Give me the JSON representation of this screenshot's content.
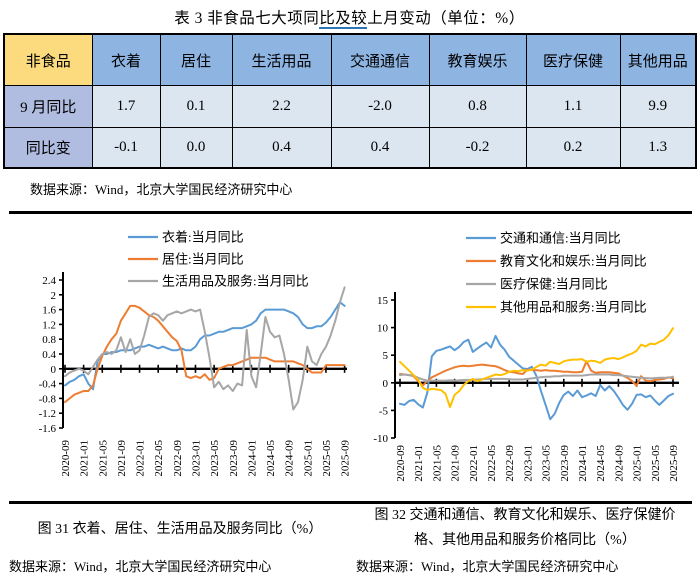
{
  "title": {
    "prefix": "表 3 非食品七大项同",
    "underlined": "比及较",
    "suffix": "上月变动（单位：%）"
  },
  "table": {
    "corner": "非食品",
    "headers": [
      "衣着",
      "居住",
      "生活用品",
      "交通通信",
      "教育娱乐",
      "医疗保健",
      "其他用品"
    ],
    "rows": [
      {
        "label": "9 月同比",
        "values": [
          "1.7",
          "0.1",
          "2.2",
          "-2.0",
          "0.8",
          "1.1",
          "9.9"
        ]
      },
      {
        "label": "同比变",
        "values": [
          "-0.1",
          "0.0",
          "0.4",
          "0.4",
          "-0.2",
          "0.2",
          "1.3"
        ]
      }
    ],
    "source": "数据来源：Wind，北京大学国民经济研究中心",
    "colors": {
      "corner_bg": "#FBDB7D",
      "header_bg": "#8EB4E2",
      "row_label_bg": "#B0BDE1",
      "data_bg": "#DCE6F1",
      "border": "#000000",
      "title_underline": "#2E75B6"
    }
  },
  "chart_data": [
    {
      "type": "line",
      "title": "",
      "xlabel": "",
      "ylabel": "",
      "x_start": "2020-09",
      "x_end": "2025-09",
      "x_frequency": "monthly",
      "x_tick_labels": [
        "2020-09",
        "2021-01",
        "2021-05",
        "2021-09",
        "2022-01",
        "2022-05",
        "2022-09",
        "2023-01",
        "2023-05",
        "2023-09",
        "2024-01",
        "2024-05",
        "2024-09",
        "2025-01",
        "2025-05",
        "2025-09"
      ],
      "ylim": [
        -1.6,
        2.4
      ],
      "ytick_labels": [
        "2.4",
        "2",
        "1.6",
        "1.2",
        "0.8",
        "0.4",
        "0",
        "-0.4",
        "-0.8",
        "-1.2",
        "-1.6"
      ],
      "grid": false,
      "legend_position": "top",
      "series": [
        {
          "name": "衣着:当月同比",
          "color": "#5B9BD5",
          "values": [
            -0.45,
            -0.35,
            -0.3,
            -0.2,
            -0.15,
            -0.4,
            -0.55,
            0.2,
            0.4,
            0.4,
            0.45,
            0.45,
            0.5,
            0.5,
            0.5,
            0.55,
            0.6,
            0.6,
            0.65,
            0.6,
            0.55,
            0.6,
            0.55,
            0.5,
            0.5,
            0.55,
            0.5,
            0.5,
            0.6,
            0.8,
            0.9,
            0.9,
            0.95,
            1.0,
            1.0,
            1.05,
            1.1,
            1.1,
            1.1,
            1.15,
            1.2,
            1.3,
            1.5,
            1.6,
            1.6,
            1.6,
            1.6,
            1.6,
            1.55,
            1.5,
            1.4,
            1.2,
            1.1,
            1.1,
            1.15,
            1.15,
            1.25,
            1.4,
            1.6,
            1.8,
            1.7
          ]
        },
        {
          "name": "居住:当月同比",
          "color": "#ED7D31",
          "values": [
            -0.9,
            -0.8,
            -0.7,
            -0.65,
            -0.6,
            -0.6,
            -0.45,
            0.0,
            0.35,
            0.6,
            0.8,
            0.95,
            1.3,
            1.5,
            1.7,
            1.7,
            1.65,
            1.55,
            1.45,
            1.4,
            1.3,
            1.15,
            1.0,
            0.85,
            0.75,
            0.5,
            -0.2,
            -0.25,
            -0.2,
            -0.25,
            -0.15,
            -0.3,
            -0.25,
            0.0,
            0.05,
            0.1,
            0.1,
            0.15,
            0.2,
            0.25,
            0.3,
            0.3,
            0.3,
            0.3,
            0.25,
            0.2,
            0.2,
            0.2,
            0.2,
            0.2,
            0.15,
            0.1,
            0.0,
            -0.1,
            -0.1,
            -0.1,
            0.1,
            0.1,
            0.1,
            0.1,
            0.1
          ]
        },
        {
          "name": "生活用品及服务:当月同比",
          "color": "#A6A6A6",
          "values": [
            -0.2,
            -0.1,
            -0.05,
            0.0,
            -0.05,
            -0.15,
            0.05,
            0.25,
            0.4,
            0.45,
            0.4,
            0.5,
            0.85,
            0.45,
            0.8,
            0.4,
            0.5,
            0.9,
            1.4,
            1.5,
            1.45,
            1.3,
            1.45,
            1.5,
            1.55,
            1.5,
            1.55,
            1.6,
            1.55,
            1.6,
            1.0,
            0.3,
            -0.5,
            -0.35,
            -0.55,
            -0.45,
            -0.6,
            -0.4,
            -0.45,
            1.05,
            -0.2,
            -0.5,
            0.4,
            1.4,
            1.0,
            0.85,
            0.9,
            0.4,
            -0.3,
            -1.1,
            -0.9,
            -0.3,
            0.6,
            0.2,
            0.1,
            0.4,
            0.6,
            0.9,
            1.3,
            1.8,
            2.2
          ]
        }
      ]
    },
    {
      "type": "line",
      "title": "",
      "xlabel": "",
      "ylabel": "",
      "x_start": "2020-09",
      "x_end": "2025-09",
      "x_frequency": "monthly",
      "x_tick_labels": [
        "2020-09",
        "2021-01",
        "2021-05",
        "2021-09",
        "2022-01",
        "2022-05",
        "2022-09",
        "2023-01",
        "2023-05",
        "2023-09",
        "2024-01",
        "2024-05",
        "2024-09",
        "2025-01",
        "2025-05",
        "2025-09"
      ],
      "ylim": [
        -10,
        15
      ],
      "ytick_labels": [
        "15",
        "10",
        "5",
        "0",
        "-5",
        "-10"
      ],
      "grid": false,
      "legend_position": "top",
      "series": [
        {
          "name": "交通和通信:当月同比",
          "color": "#5B9BD5",
          "values": [
            -3.8,
            -4.0,
            -3.3,
            -3.1,
            -3.9,
            -4.5,
            -1.8,
            4.8,
            5.8,
            6.0,
            6.3,
            6.6,
            5.9,
            6.5,
            7.4,
            7.8,
            5.6,
            6.2,
            6.8,
            7.3,
            6.4,
            8.5,
            6.9,
            6.0,
            4.7,
            4.0,
            3.3,
            2.6,
            2.5,
            2.9,
            1.2,
            -1.5,
            -4.0,
            -6.6,
            -5.6,
            -3.6,
            -2.2,
            -1.6,
            -2.4,
            -1.4,
            -2.6,
            -2.3,
            -1.9,
            -2.4,
            -0.4,
            -1.4,
            -0.6,
            -1.5,
            -2.7,
            -4.0,
            -4.9,
            -3.8,
            -2.2,
            -2.1,
            -2.6,
            -2.3,
            -3.2,
            -4.0,
            -3.2,
            -2.4,
            -2.0
          ]
        },
        {
          "name": "教育文化和娱乐:当月同比",
          "color": "#ED7D31",
          "values": [
            1.6,
            1.5,
            1.4,
            1.2,
            0.3,
            -0.5,
            0.3,
            1.0,
            1.4,
            1.8,
            2.2,
            2.5,
            2.8,
            3.0,
            3.1,
            3.0,
            3.1,
            3.2,
            3.3,
            3.2,
            3.1,
            3.0,
            2.7,
            2.3,
            2.0,
            1.9,
            1.7,
            1.6,
            2.4,
            2.3,
            2.3,
            2.2,
            2.3,
            2.2,
            2.2,
            2.1,
            2.0,
            2.0,
            1.9,
            1.9,
            2.0,
            3.9,
            2.2,
            1.8,
            1.9,
            1.9,
            1.9,
            1.8,
            1.7,
            1.3,
            0.9,
            0.3,
            -0.5,
            1.2,
            0.4,
            0.3,
            0.5,
            0.6,
            0.7,
            1.0,
            0.8
          ]
        },
        {
          "name": "医疗保健:当月同比",
          "color": "#A6A6A6",
          "values": [
            1.4,
            1.5,
            1.4,
            1.3,
            0.9,
            0.6,
            0.4,
            0.4,
            0.4,
            0.4,
            0.4,
            0.45,
            0.4,
            0.45,
            0.5,
            0.5,
            0.55,
            0.6,
            0.65,
            0.7,
            0.7,
            0.7,
            0.7,
            0.7,
            0.65,
            0.6,
            0.6,
            0.6,
            0.7,
            0.8,
            0.9,
            1.0,
            1.1,
            1.1,
            1.2,
            1.2,
            1.3,
            1.3,
            1.3,
            1.3,
            1.3,
            1.4,
            1.5,
            1.5,
            1.5,
            1.5,
            1.5,
            1.4,
            1.4,
            1.3,
            1.2,
            1.1,
            1.0,
            0.9,
            0.85,
            0.8,
            0.85,
            0.9,
            0.9,
            0.9,
            1.1
          ]
        },
        {
          "name": "其他用品和服务:当月同比",
          "color": "#FFC000",
          "values": [
            3.8,
            3.0,
            2.2,
            1.4,
            0.5,
            -0.9,
            -1.3,
            -1.1,
            -1.2,
            -1.3,
            -2.0,
            -4.4,
            -2.2,
            -1.5,
            -0.4,
            0.3,
            0.7,
            0.3,
            0.6,
            0.9,
            1.2,
            1.5,
            1.4,
            1.6,
            2.0,
            2.2,
            2.1,
            2.3,
            2.2,
            2.4,
            2.9,
            3.3,
            3.1,
            3.8,
            3.6,
            3.4,
            3.9,
            4.1,
            4.2,
            4.2,
            4.3,
            3.8,
            4.0,
            3.9,
            3.6,
            4.2,
            4.4,
            4.5,
            4.3,
            4.6,
            5.0,
            5.3,
            5.8,
            6.9,
            6.6,
            7.1,
            7.0,
            7.4,
            7.8,
            8.6,
            9.9
          ]
        }
      ]
    }
  ],
  "figures": [
    {
      "caption_lines": [
        "图 31 衣着、居住、生活用品及服务同比（%）"
      ],
      "source": "数据来源：Wind，北京大学国民经济研究中心"
    },
    {
      "caption_lines": [
        "图 32 交通和通信、教育文化和娱乐、医疗保健价",
        "格、其他用品和服务价格同比（%）"
      ],
      "source": "数据来源：Wind，北京大学国民经济研究中心"
    }
  ]
}
